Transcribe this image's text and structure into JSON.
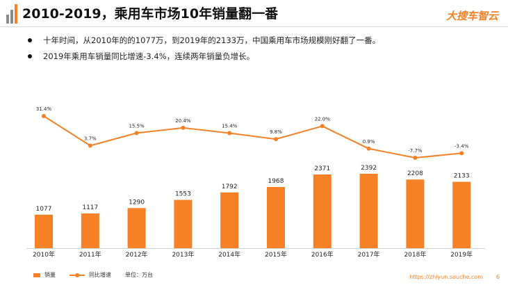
{
  "header": {
    "title": "2010-2019，乘用车市场10年销量翻一番",
    "brand": "大搜车智云"
  },
  "bullets": [
    "十年时间，从2010年的的1077万，到2019年的2133万，中国乘用车市场规模刚好翻了一番。",
    "2019年乘用车销量同比增速-3.4%，连续两年销量负增长。"
  ],
  "chart_data": {
    "type": "bar",
    "categories": [
      "2010年",
      "2011年",
      "2012年",
      "2013年",
      "2014年",
      "2015年",
      "2016年",
      "2017年",
      "2018年",
      "2019年"
    ],
    "series": [
      {
        "name": "销量",
        "type": "bar",
        "values": [
          1077,
          1117,
          1290,
          1553,
          1792,
          1968,
          2371,
          2392,
          2208,
          2133
        ],
        "labels": [
          "1077",
          "1117",
          "1290",
          "1553",
          "1792",
          "1968",
          "2371",
          "2392",
          "2208",
          "2133"
        ]
      },
      {
        "name": "同比增速",
        "type": "line",
        "values": [
          31.4,
          3.7,
          15.5,
          20.4,
          15.4,
          9.8,
          22.0,
          0.9,
          -7.7,
          -3.4
        ],
        "labels": [
          "31.4%",
          "3.7%",
          "15.5%",
          "20.4%",
          "15.4%",
          "9.8%",
          "22.0%",
          "0.9%",
          "-7.7%",
          "-3.4%"
        ]
      }
    ],
    "unit_label": "单位：万台",
    "bar_color": "#f58025",
    "line_color": "#f58025",
    "grid": false
  },
  "footer": {
    "url": "https://zhiyun.souche.com",
    "page": "6"
  }
}
